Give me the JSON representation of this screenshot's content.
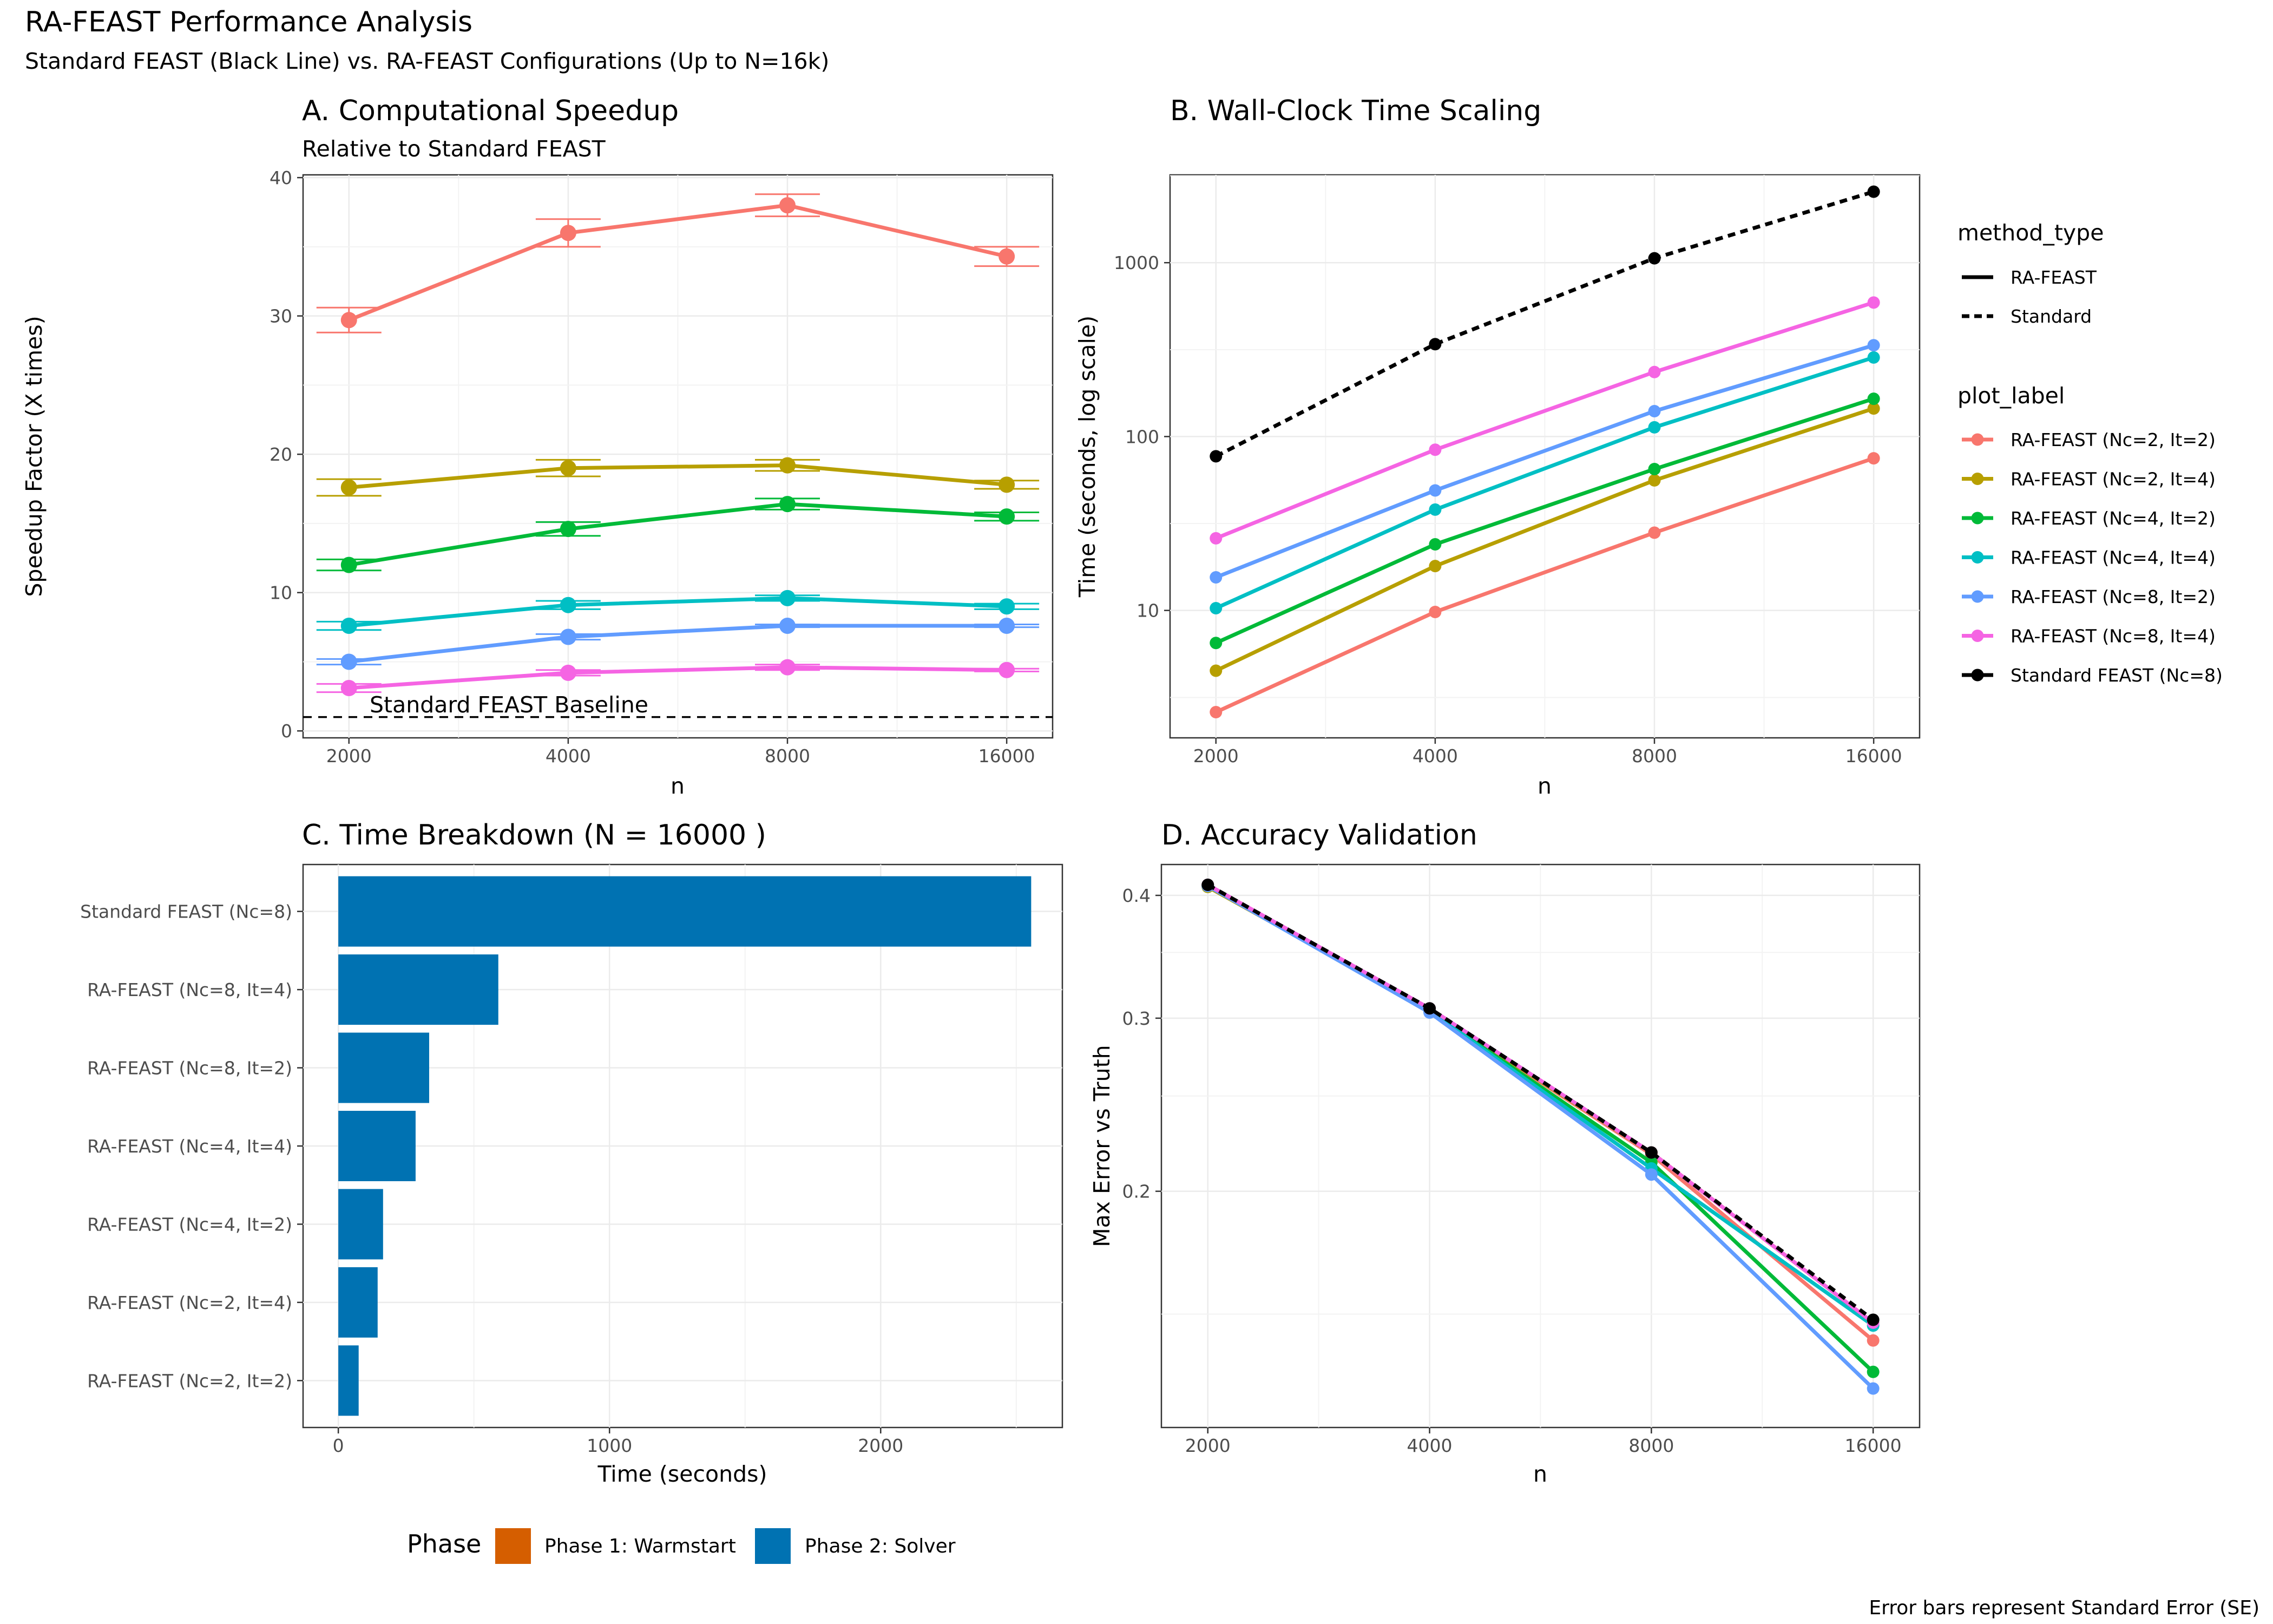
{
  "figure": {
    "title": "RA-FEAST Performance Analysis",
    "subtitle": "Standard FEAST (Black Line) vs. RA-FEAST Configurations (Up to N=16k)",
    "caption": "Error bars represent Standard Error (SE)"
  },
  "colors": {
    "RA-FEAST (Nc=2, It=2)": "#F8766D",
    "RA-FEAST (Nc=2, It=4)": "#B79F00",
    "RA-FEAST (Nc=4, It=2)": "#00BA38",
    "RA-FEAST (Nc=4, It=4)": "#00BFC4",
    "RA-FEAST (Nc=8, It=2)": "#619CFF",
    "RA-FEAST (Nc=8, It=4)": "#F564E3",
    "Standard FEAST (Nc=8)": "#000000",
    "phase1": "#D55E00",
    "phase2": "#0072B2"
  },
  "legend": {
    "method_title": "method_type",
    "method_items": [
      "RA-FEAST",
      "Standard"
    ],
    "label_title": "plot_label",
    "label_items": [
      "RA-FEAST (Nc=2, It=2)",
      "RA-FEAST (Nc=2, It=4)",
      "RA-FEAST (Nc=4, It=2)",
      "RA-FEAST (Nc=4, It=4)",
      "RA-FEAST (Nc=8, It=2)",
      "RA-FEAST (Nc=8, It=4)",
      "Standard FEAST (Nc=8)"
    ],
    "phase_title": "Phase",
    "phase_items": [
      "Phase 1: Warmstart",
      "Phase 2: Solver"
    ]
  },
  "chart_data": [
    {
      "panel": "A",
      "type": "line",
      "title": "A. Computational Speedup",
      "subtitle": "Relative to Standard FEAST",
      "xlabel": "n",
      "ylabel": "Speedup Factor (X times)",
      "x": [
        2000,
        4000,
        8000,
        16000
      ],
      "x_scale": "log2",
      "ylim": [
        -0.5,
        40.2
      ],
      "yticks": [
        0,
        10,
        20,
        30,
        40
      ],
      "baseline": {
        "value": 1,
        "label": "Standard FEAST Baseline"
      },
      "series": [
        {
          "name": "RA-FEAST (Nc=2, It=2)",
          "values": [
            29.7,
            36.0,
            38.0,
            34.3
          ],
          "se": [
            0.9,
            1.0,
            0.8,
            0.7
          ]
        },
        {
          "name": "RA-FEAST (Nc=2, It=4)",
          "values": [
            17.6,
            19.0,
            19.2,
            17.8
          ],
          "se": [
            0.6,
            0.6,
            0.4,
            0.3
          ]
        },
        {
          "name": "RA-FEAST (Nc=4, It=2)",
          "values": [
            12.0,
            14.6,
            16.4,
            15.5
          ],
          "se": [
            0.4,
            0.5,
            0.4,
            0.3
          ]
        },
        {
          "name": "RA-FEAST (Nc=4, It=4)",
          "values": [
            7.6,
            9.1,
            9.6,
            9.0
          ],
          "se": [
            0.3,
            0.3,
            0.2,
            0.2
          ]
        },
        {
          "name": "RA-FEAST (Nc=8, It=2)",
          "values": [
            5.0,
            6.8,
            7.6,
            7.6
          ],
          "se": [
            0.2,
            0.2,
            0.1,
            0.1
          ]
        },
        {
          "name": "RA-FEAST (Nc=8, It=4)",
          "values": [
            3.1,
            4.2,
            4.6,
            4.4
          ],
          "se": [
            0.3,
            0.2,
            0.2,
            0.1
          ]
        }
      ]
    },
    {
      "panel": "B",
      "type": "line",
      "title": "B. Wall-Clock Time Scaling",
      "xlabel": "n",
      "ylabel": "Time (seconds, log scale)",
      "x": [
        2000,
        4000,
        8000,
        16000
      ],
      "x_scale": "log2",
      "y_scale": "log10",
      "ylim": [
        1.85,
        3200
      ],
      "yticks": [
        10,
        100,
        1000
      ],
      "ytick_labels": [
        "10",
        "100",
        "1000"
      ],
      "series": [
        {
          "name": "Standard FEAST (Nc=8)",
          "method": "Standard",
          "values": [
            77,
            340,
            1060,
            2560
          ]
        },
        {
          "name": "RA-FEAST (Nc=8, It=4)",
          "method": "RA-FEAST",
          "values": [
            26,
            84,
            235,
            590
          ]
        },
        {
          "name": "RA-FEAST (Nc=8, It=2)",
          "method": "RA-FEAST",
          "values": [
            15.5,
            49,
            140,
            335
          ]
        },
        {
          "name": "RA-FEAST (Nc=4, It=4)",
          "method": "RA-FEAST",
          "values": [
            10.3,
            38,
            113,
            285
          ]
        },
        {
          "name": "RA-FEAST (Nc=4, It=2)",
          "method": "RA-FEAST",
          "values": [
            6.5,
            24,
            65,
            165
          ]
        },
        {
          "name": "RA-FEAST (Nc=2, It=4)",
          "method": "RA-FEAST",
          "values": [
            4.5,
            18,
            56,
            145
          ]
        },
        {
          "name": "RA-FEAST (Nc=2, It=2)",
          "method": "RA-FEAST",
          "values": [
            2.6,
            9.8,
            28,
            75
          ]
        }
      ]
    },
    {
      "panel": "C",
      "type": "bar",
      "orientation": "horizontal",
      "title": "C. Time Breakdown (N = 16000 )",
      "xlabel": "Time (seconds)",
      "xlim": [
        -130,
        2670
      ],
      "xticks": [
        0,
        1000,
        2000
      ],
      "categories": [
        "Standard FEAST (Nc=8)",
        "RA-FEAST (Nc=8, It=4)",
        "RA-FEAST (Nc=8, It=2)",
        "RA-FEAST (Nc=4, It=4)",
        "RA-FEAST (Nc=4, It=2)",
        "RA-FEAST (Nc=2, It=4)",
        "RA-FEAST (Nc=2, It=2)"
      ],
      "series": [
        {
          "name": "Phase 1: Warmstart",
          "values": [
            0,
            0,
            0,
            0,
            0,
            0,
            0
          ]
        },
        {
          "name": "Phase 2: Solver",
          "values": [
            2555,
            590,
            335,
            285,
            165,
            145,
            75
          ]
        }
      ]
    },
    {
      "panel": "D",
      "type": "line",
      "title": "D. Accuracy Validation",
      "xlabel": "n",
      "ylabel": "Max Error vs Truth",
      "x": [
        2000,
        4000,
        8000,
        16000
      ],
      "x_scale": "log2",
      "y_scale": "log10",
      "ylim": [
        0.115,
        0.43
      ],
      "yticks": [
        0.2,
        0.3,
        0.4
      ],
      "ytick_labels": [
        "0.2",
        "0.3",
        "0.4"
      ],
      "series": [
        {
          "name": "RA-FEAST (Nc=2, It=2)",
          "method": "RA-FEAST",
          "values": [
            0.409,
            0.306,
            0.218,
            0.141
          ]
        },
        {
          "name": "RA-FEAST (Nc=2, It=4)",
          "method": "RA-FEAST",
          "values": [
            0.408,
            0.306,
            0.219,
            0.147
          ]
        },
        {
          "name": "RA-FEAST (Nc=4, It=2)",
          "method": "RA-FEAST",
          "values": [
            0.409,
            0.305,
            0.214,
            0.131
          ]
        },
        {
          "name": "RA-FEAST (Nc=4, It=4)",
          "method": "RA-FEAST",
          "values": [
            0.409,
            0.305,
            0.211,
            0.146
          ]
        },
        {
          "name": "RA-FEAST (Nc=8, It=2)",
          "method": "RA-FEAST",
          "values": [
            0.409,
            0.304,
            0.208,
            0.126
          ]
        },
        {
          "name": "RA-FEAST (Nc=8, It=4)",
          "method": "RA-FEAST",
          "values": [
            0.41,
            0.307,
            0.219,
            0.147
          ]
        },
        {
          "name": "Standard FEAST (Nc=8)",
          "method": "Standard",
          "values": [
            0.41,
            0.307,
            0.219,
            0.148
          ]
        }
      ]
    }
  ]
}
